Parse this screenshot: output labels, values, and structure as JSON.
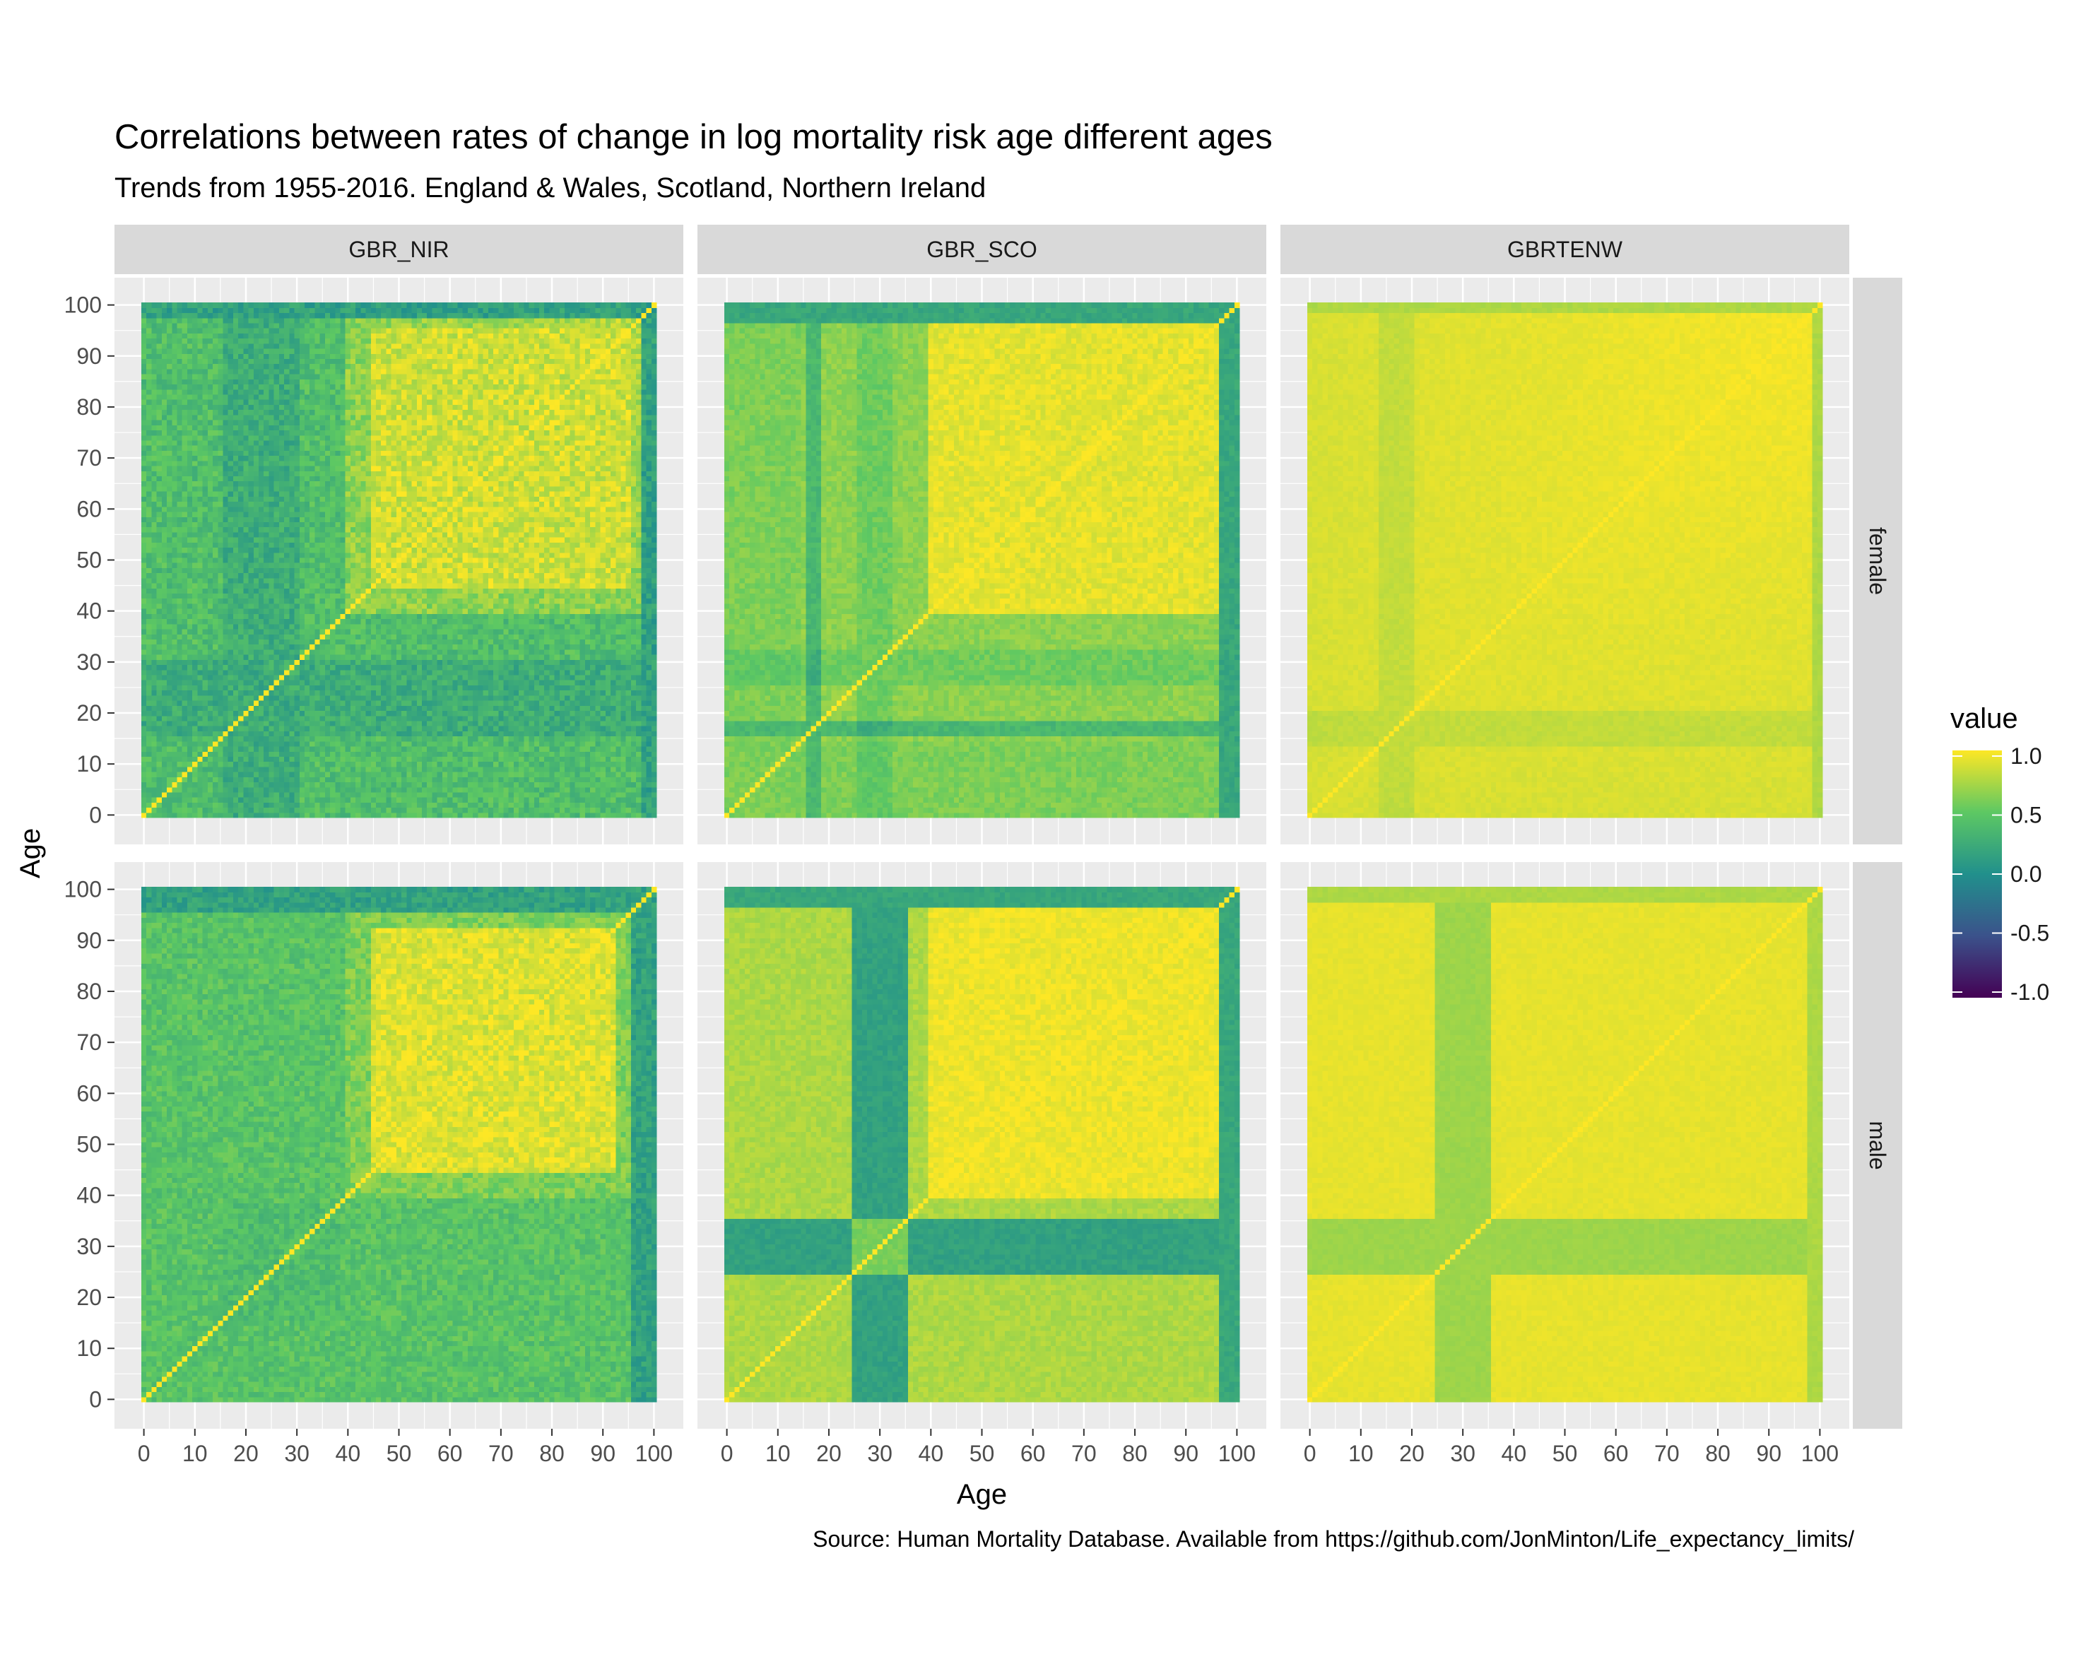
{
  "chart_data": {
    "type": "heatmap",
    "title": "Correlations between rates of change in log mortality risk age different ages",
    "subtitle": "Trends from 1955-2016. England & Wales, Scotland, Northern Ireland",
    "caption": "Source: Human Mortality Database. Available from https://github.com/JonMinton/Life_expectancy_limits/",
    "xlabel": "Age",
    "ylabel": "Age",
    "x_ticks": [
      "0",
      "10",
      "20",
      "30",
      "40",
      "50",
      "60",
      "70",
      "80",
      "90",
      "100"
    ],
    "y_ticks": [
      "0",
      "10",
      "20",
      "30",
      "40",
      "50",
      "60",
      "70",
      "80",
      "90",
      "100"
    ],
    "xlim": [
      0,
      100
    ],
    "ylim": [
      0,
      100
    ],
    "columns": [
      "GBR_NIR",
      "GBR_SCO",
      "GBRTENW"
    ],
    "rows": [
      "female",
      "male"
    ],
    "legend": {
      "title": "value",
      "ticks": [
        "1.0",
        "0.5",
        "0.0",
        "-0.5",
        "-1.0"
      ],
      "range": [
        -1,
        1
      ],
      "palette": [
        "#440154",
        "#3b528b",
        "#21908c",
        "#5dc863",
        "#fde725"
      ],
      "position": "right"
    },
    "grid": true,
    "panels": [
      {
        "column": "GBR_NIR",
        "row": "female",
        "summary": "diagonal = 1.0; mostly 0.3-0.8; young-age block and band near age 100 around 0.1-0.3; ages 45-95 block about 0.85"
      },
      {
        "column": "GBR_SCO",
        "row": "female",
        "summary": "diagonal = 1.0; ages 40-95 block about 0.9; bands at ages 17 and 97-100 near 0.2"
      },
      {
        "column": "GBRTENW",
        "row": "female",
        "summary": "diagonal = 1.0; nearly all cells 0.8-1.0"
      },
      {
        "column": "GBR_NIR",
        "row": "male",
        "summary": "diagonal = 1.0; ages 45-90 block about 0.9; ages 0-40 block around 0.3-0.5; band near age 100 about 0.1"
      },
      {
        "column": "GBR_SCO",
        "row": "male",
        "summary": "diagonal = 1.0; ages 40-95 block about 0.95; bands at ages 25-35 and near age 100 about 0.1-0.2"
      },
      {
        "column": "GBRTENW",
        "row": "male",
        "summary": "diagonal = 1.0; nearly all cells 0.85-1.0; band at ages 25-35 about 0.7"
      }
    ]
  }
}
